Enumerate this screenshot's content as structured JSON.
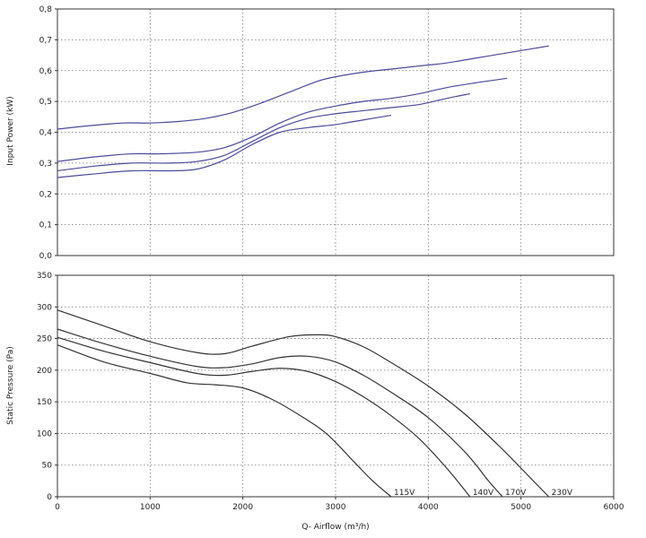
{
  "chart_data": [
    {
      "type": "line",
      "ylabel": "Input Power (kW)",
      "xlim": [
        0,
        6000
      ],
      "ylim": [
        0,
        0.8
      ],
      "y_ticks": [
        "0,0",
        "0,1",
        "0,2",
        "0,3",
        "0,4",
        "0,5",
        "0,6",
        "0,7",
        "0,8"
      ],
      "grid": true,
      "series": [
        {
          "color": "#4a4a9a",
          "x": [
            0,
            300,
            700,
            1000,
            1300,
            1600,
            1900,
            2200,
            2500,
            2800,
            3000,
            3300,
            3600,
            3900,
            4200,
            4500,
            4800,
            5100,
            5300
          ],
          "y": [
            0.41,
            0.42,
            0.43,
            0.43,
            0.435,
            0.445,
            0.465,
            0.495,
            0.53,
            0.565,
            0.58,
            0.595,
            0.605,
            0.615,
            0.625,
            0.64,
            0.655,
            0.67,
            0.68
          ]
        },
        {
          "color": "#4a4a9a",
          "x": [
            0,
            400,
            800,
            1100,
            1500,
            1800,
            2100,
            2400,
            2700,
            3000,
            3300,
            3600,
            3900,
            4200,
            4500,
            4850
          ],
          "y": [
            0.305,
            0.32,
            0.33,
            0.33,
            0.335,
            0.35,
            0.385,
            0.43,
            0.465,
            0.485,
            0.5,
            0.51,
            0.525,
            0.545,
            0.56,
            0.575
          ]
        },
        {
          "color": "#4a4a9a",
          "x": [
            0,
            400,
            800,
            1200,
            1500,
            1800,
            2100,
            2400,
            2700,
            3000,
            3300,
            3600,
            3900,
            4200,
            4450
          ],
          "y": [
            0.275,
            0.29,
            0.3,
            0.3,
            0.305,
            0.325,
            0.37,
            0.415,
            0.445,
            0.46,
            0.47,
            0.48,
            0.49,
            0.51,
            0.525
          ]
        },
        {
          "color": "#4a4a9a",
          "x": [
            0,
            400,
            800,
            1200,
            1500,
            1800,
            2100,
            2400,
            2700,
            3000,
            3300,
            3600
          ],
          "y": [
            0.253,
            0.265,
            0.275,
            0.275,
            0.28,
            0.31,
            0.36,
            0.4,
            0.415,
            0.425,
            0.44,
            0.455
          ]
        }
      ]
    },
    {
      "type": "line",
      "xlabel": "Q- Airflow (m³/h)",
      "ylabel": "Static Pressure (Pa)",
      "xlim": [
        0,
        6000
      ],
      "ylim": [
        0,
        350
      ],
      "x_ticks": [
        "0",
        "1000",
        "2000",
        "3000",
        "4000",
        "5000",
        "6000"
      ],
      "y_ticks": [
        "0",
        "50",
        "100",
        "150",
        "200",
        "250",
        "300",
        "350"
      ],
      "grid": true,
      "series": [
        {
          "name": "230V",
          "color": "#333333",
          "x": [
            0,
            500,
            1000,
            1500,
            1800,
            2100,
            2500,
            2800,
            3000,
            3300,
            3600,
            4000,
            4400,
            4800,
            5100,
            5300
          ],
          "y": [
            295,
            270,
            245,
            228,
            226,
            238,
            253,
            256,
            253,
            237,
            212,
            175,
            130,
            75,
            30,
            0
          ]
        },
        {
          "name": "170V",
          "color": "#333333",
          "x": [
            0,
            500,
            1000,
            1500,
            1800,
            2100,
            2400,
            2700,
            3000,
            3300,
            3600,
            4000,
            4400,
            4650,
            4800
          ],
          "y": [
            265,
            242,
            222,
            206,
            204,
            210,
            220,
            222,
            213,
            192,
            165,
            125,
            70,
            25,
            0
          ]
        },
        {
          "name": "140V",
          "color": "#333333",
          "x": [
            0,
            500,
            1000,
            1500,
            1800,
            2100,
            2400,
            2700,
            3000,
            3300,
            3600,
            3900,
            4200,
            4450
          ],
          "y": [
            252,
            230,
            212,
            195,
            192,
            198,
            203,
            198,
            182,
            158,
            128,
            92,
            45,
            0
          ]
        },
        {
          "name": "115V",
          "color": "#333333",
          "x": [
            0,
            500,
            1000,
            1400,
            1700,
            2000,
            2300,
            2600,
            2900,
            3200,
            3400,
            3600
          ],
          "y": [
            240,
            213,
            195,
            180,
            177,
            172,
            155,
            130,
            100,
            55,
            25,
            0
          ]
        }
      ],
      "curve_labels": [
        {
          "text": "115V",
          "x": 3600,
          "y": 0
        },
        {
          "text": "140V",
          "x": 4450,
          "y": 0
        },
        {
          "text": "170V",
          "x": 4800,
          "y": 0
        },
        {
          "text": "230V",
          "x": 5300,
          "y": 0
        }
      ]
    }
  ]
}
